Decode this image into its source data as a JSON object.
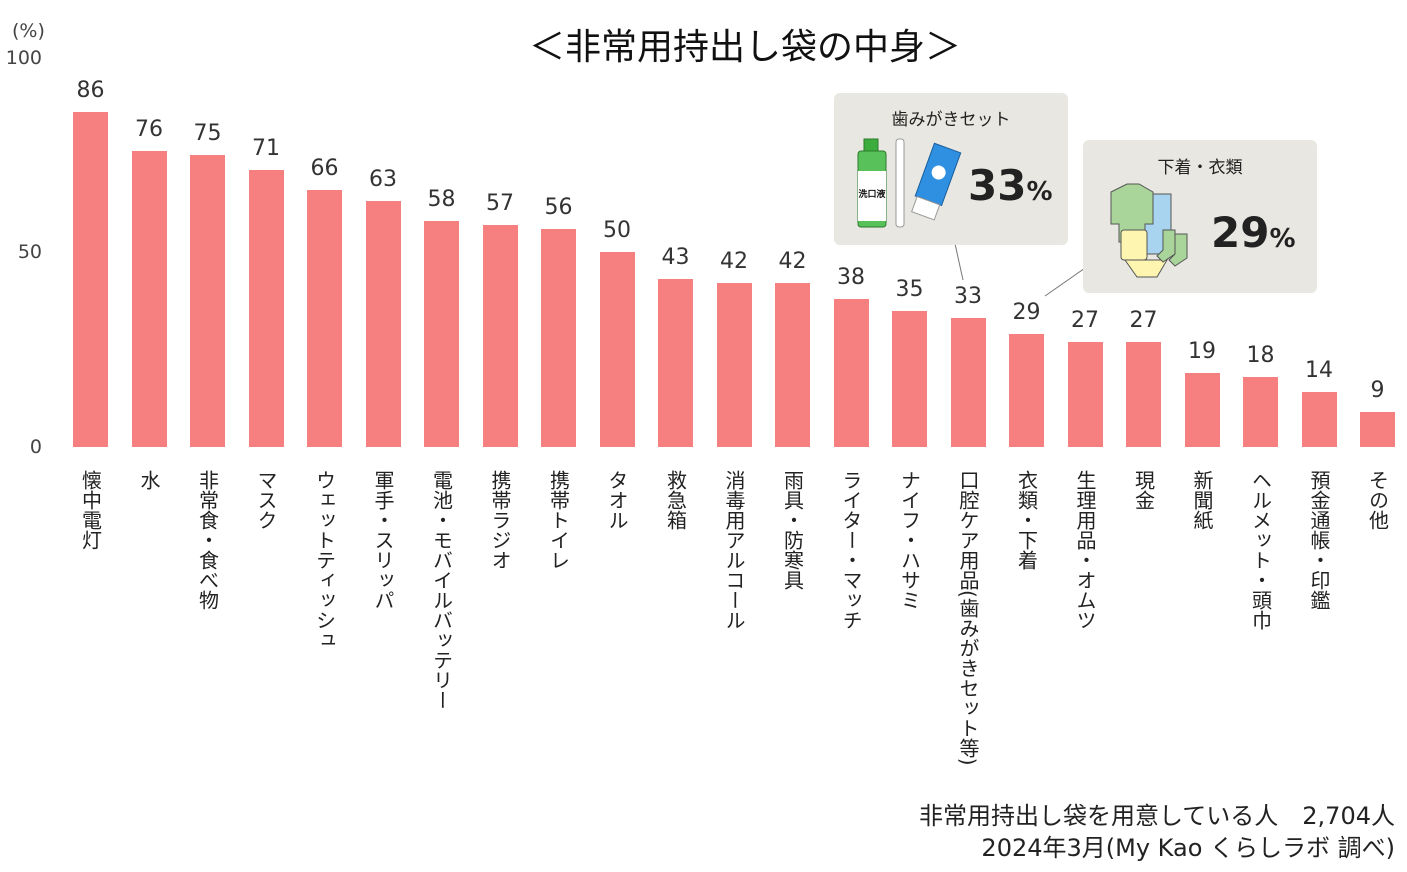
{
  "chart_data": {
    "type": "bar",
    "title": "＜非常用持出し袋の中身＞",
    "ylabel": "(%)",
    "ylim": [
      0,
      100
    ],
    "yticks": [
      "0",
      "50",
      "100"
    ],
    "grid": false,
    "bar_color": "#f5807f",
    "categories": [
      "懐中電灯",
      "水",
      "非常食・食べ物",
      "マスク",
      "ウェットティッシュ",
      "軍手・スリッパ",
      "電池・モバイルバッテリー",
      "携帯ラジオ",
      "携帯トイレ",
      "タオル",
      "救急箱",
      "消毒用アルコール",
      "雨具・防寒具",
      "ライター・マッチ",
      "ナイフ・ハサミ",
      "口腔ケア用品(歯みがきセット等)",
      "衣類・下着",
      "生理用品・オムツ",
      "現金",
      "新聞紙",
      "ヘルメット・頭巾",
      "預金通帳・印鑑",
      "その他"
    ],
    "values": [
      86,
      76,
      75,
      71,
      66,
      63,
      58,
      57,
      56,
      50,
      43,
      42,
      42,
      38,
      35,
      33,
      29,
      27,
      27,
      19,
      18,
      14,
      9
    ]
  },
  "callouts": [
    {
      "title": "歯みがきセット",
      "value": "33",
      "unit": "%",
      "bottle_label": "洗口液"
    },
    {
      "title": "下着・衣類",
      "value": "29",
      "unit": "%"
    }
  ],
  "notes": {
    "line1": "非常用持出し袋を用意している人　2,704人",
    "line2": "2024年3月(My Kao くらしラボ 調べ)"
  }
}
